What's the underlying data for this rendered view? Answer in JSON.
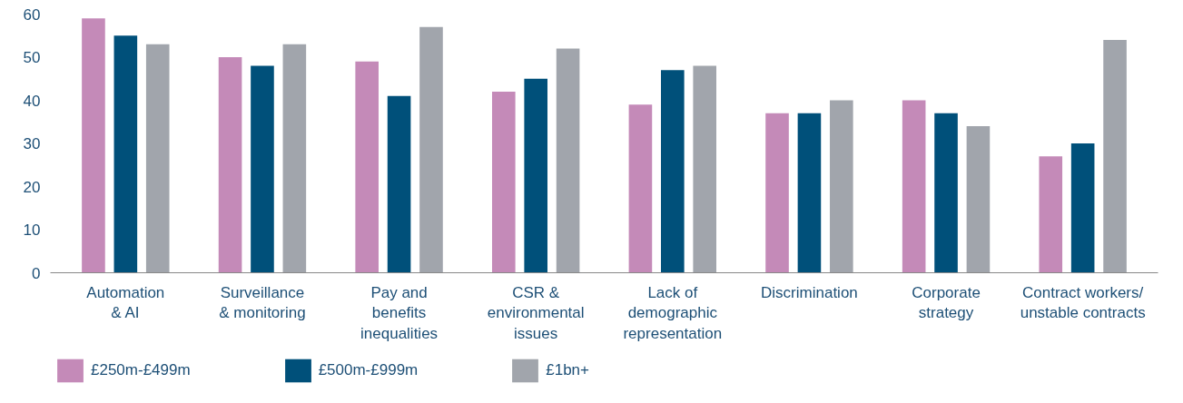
{
  "chart_data": {
    "type": "bar",
    "categories": [
      "Automation\n& AI",
      "Surveillance\n& monitoring",
      "Pay and\nbenefits\ninequalities",
      "CSR &\nenvironmental\nissues",
      "Lack of\ndemographic\nrepresentation",
      "Discrimination",
      "Corporate\nstrategy",
      "Contract workers/\nunstable contracts"
    ],
    "series": [
      {
        "name": "£250m-£499m",
        "color": "#c48ab8",
        "values": [
          59,
          50,
          49,
          42,
          39,
          37,
          40,
          27
        ]
      },
      {
        "name": "£500m-£999m",
        "color": "#00507a",
        "values": [
          55,
          48,
          41,
          45,
          47,
          37,
          37,
          30
        ]
      },
      {
        "name": "£1bn+",
        "color": "#a1a5ac",
        "values": [
          53,
          53,
          57,
          52,
          48,
          40,
          34,
          54
        ]
      }
    ],
    "ylim": [
      0,
      60
    ],
    "yticks": [
      0,
      10,
      20,
      30,
      40,
      50,
      60
    ],
    "grid": false,
    "legend": "bottom"
  }
}
